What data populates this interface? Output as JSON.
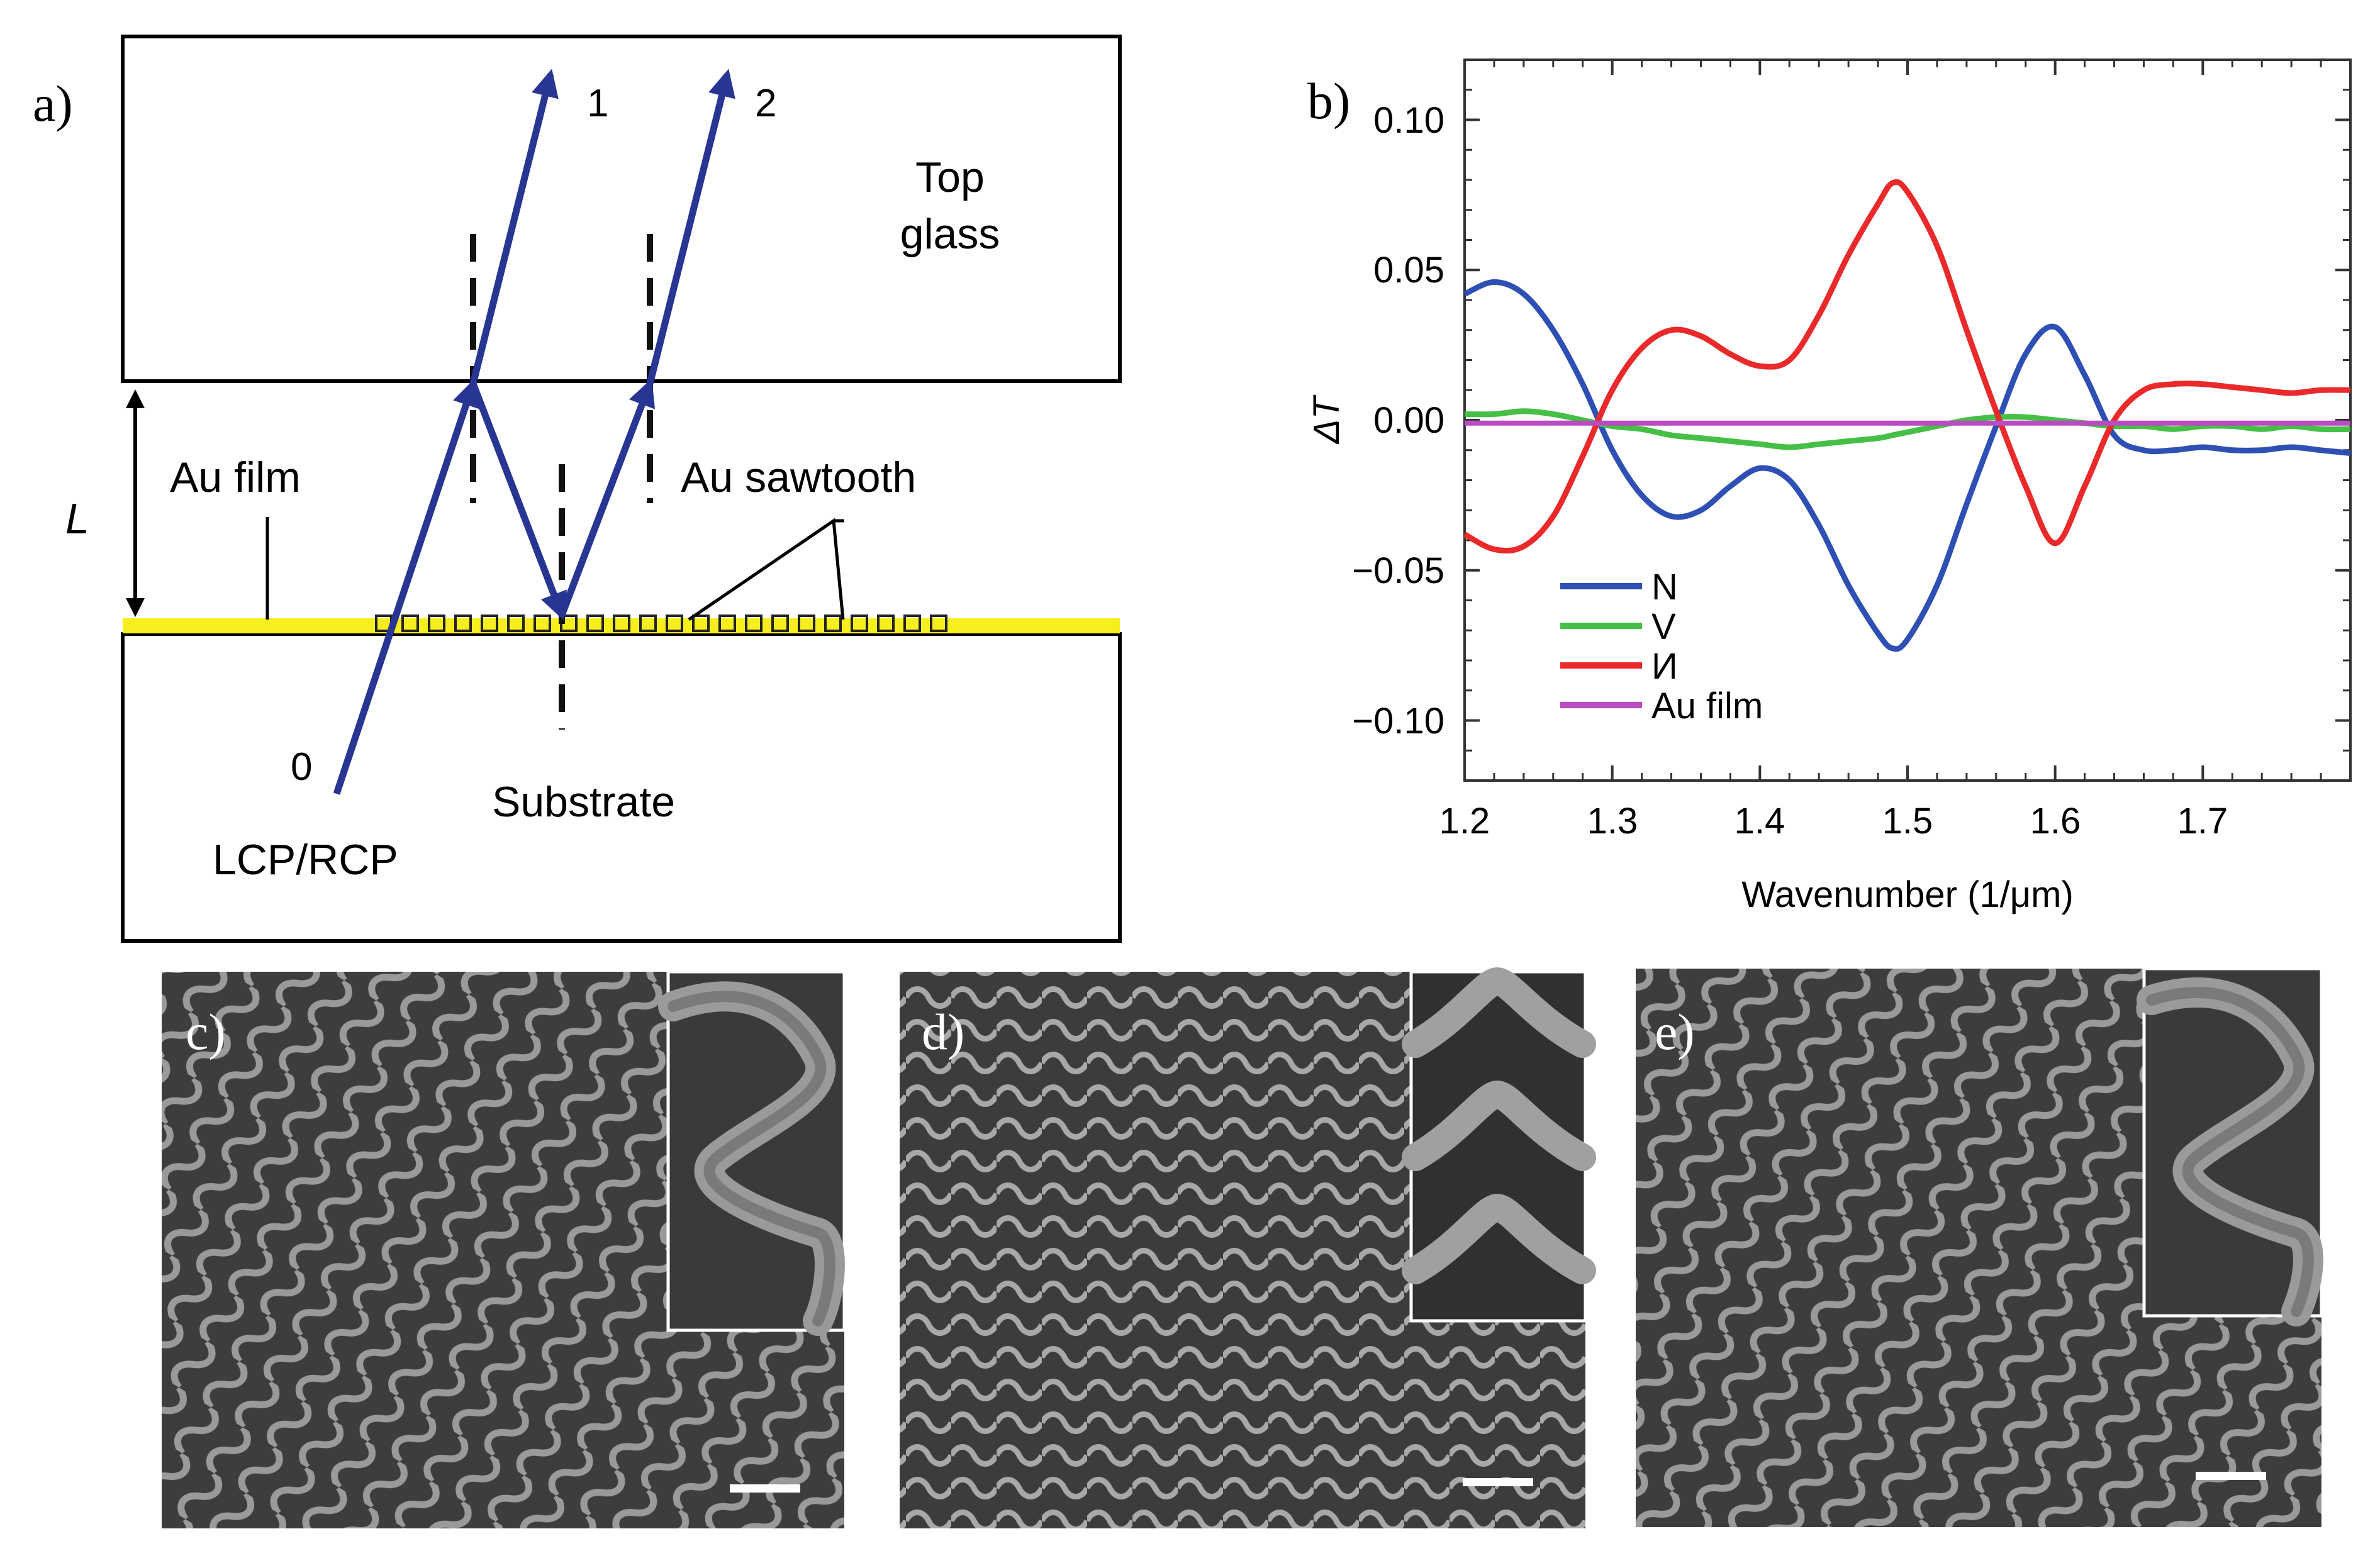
{
  "figure": {
    "panel_a": {
      "label": "a)",
      "beam_labels": [
        "0",
        "1",
        "2"
      ],
      "top_glass_line1": "Top",
      "top_glass_line2": "glass",
      "gap_label": "L",
      "au_film": "Au film",
      "au_sawtooth": "Au sawtooth",
      "substrate": "Substrate",
      "polarization": "LCP/RCP",
      "colors": {
        "beam": "#283593",
        "gold": "#f7ee1e"
      }
    },
    "panel_c": {
      "label": "c)"
    },
    "panel_d": {
      "label": "d)"
    },
    "panel_e": {
      "label": "e)"
    }
  },
  "chart_data": {
    "type": "line",
    "panel_label": "b)",
    "xlabel": "Wavenumber (1/μm)",
    "ylabel": "ΔT",
    "xlim": [
      1.2,
      1.8
    ],
    "ylim": [
      -0.12,
      0.12
    ],
    "x_ticks": [
      "1.2",
      "1.3",
      "1.4",
      "1.5",
      "1.6",
      "1.7"
    ],
    "y_ticks": [
      "0.10",
      "0.05",
      "0.00",
      "−0.05",
      "−0.10"
    ],
    "legend_position": "bottom-left",
    "x": [
      1.2,
      1.22,
      1.24,
      1.26,
      1.28,
      1.3,
      1.32,
      1.34,
      1.36,
      1.38,
      1.4,
      1.42,
      1.44,
      1.46,
      1.48,
      1.49,
      1.5,
      1.52,
      1.54,
      1.56,
      1.58,
      1.6,
      1.62,
      1.64,
      1.66,
      1.68,
      1.7,
      1.72,
      1.74,
      1.76,
      1.78,
      1.8
    ],
    "series": [
      {
        "name": "N",
        "color": "#2e4fb3",
        "values": [
          0.042,
          0.046,
          0.042,
          0.03,
          0.012,
          -0.01,
          -0.025,
          -0.032,
          -0.03,
          -0.022,
          -0.016,
          -0.02,
          -0.035,
          -0.055,
          -0.071,
          -0.076,
          -0.073,
          -0.055,
          -0.028,
          -0.002,
          0.022,
          0.031,
          0.015,
          -0.005,
          -0.01,
          -0.01,
          -0.009,
          -0.01,
          -0.01,
          -0.009,
          -0.01,
          -0.011
        ]
      },
      {
        "name": "V",
        "color": "#45bf45",
        "values": [
          0.002,
          0.002,
          0.003,
          0.002,
          0.0,
          -0.002,
          -0.003,
          -0.005,
          -0.006,
          -0.007,
          -0.008,
          -0.009,
          -0.008,
          -0.007,
          -0.006,
          -0.005,
          -0.004,
          -0.002,
          0.0,
          0.001,
          0.001,
          0.0,
          -0.001,
          -0.002,
          -0.002,
          -0.003,
          -0.002,
          -0.002,
          -0.003,
          -0.002,
          -0.003,
          -0.003
        ]
      },
      {
        "name": "И",
        "color": "#ea2a2a",
        "values": [
          -0.038,
          -0.043,
          -0.042,
          -0.032,
          -0.012,
          0.01,
          0.024,
          0.03,
          0.028,
          0.022,
          0.018,
          0.02,
          0.035,
          0.055,
          0.072,
          0.079,
          0.076,
          0.058,
          0.03,
          0.003,
          -0.022,
          -0.041,
          -0.022,
          0.0,
          0.01,
          0.012,
          0.012,
          0.011,
          0.01,
          0.009,
          0.01,
          0.01
        ]
      },
      {
        "name": "Au film",
        "color": "#b84cc0",
        "values": [
          -0.001,
          -0.001,
          -0.001,
          -0.001,
          -0.001,
          -0.001,
          -0.001,
          -0.001,
          -0.001,
          -0.001,
          -0.001,
          -0.001,
          -0.001,
          -0.001,
          -0.001,
          -0.001,
          -0.001,
          -0.001,
          -0.001,
          -0.001,
          -0.001,
          -0.001,
          -0.001,
          -0.001,
          -0.001,
          -0.001,
          -0.001,
          -0.001,
          -0.001,
          -0.001,
          -0.001,
          -0.001
        ]
      }
    ]
  }
}
